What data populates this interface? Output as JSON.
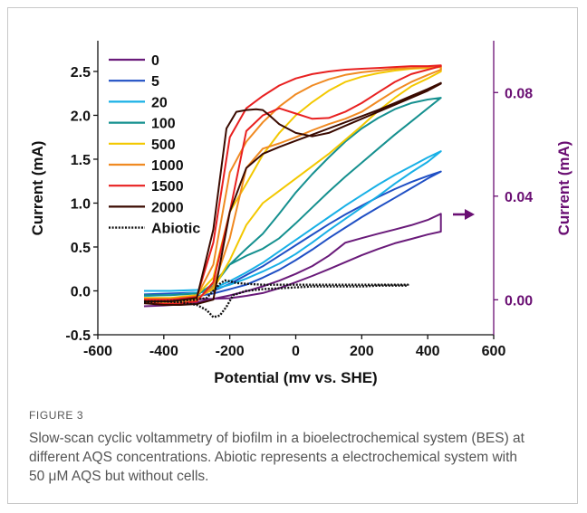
{
  "figure": {
    "label": "FIGURE 3",
    "caption": "Slow-scan cyclic voltammetry of biofilm in a bioelectrochemical system (BES) at different AQS concentrations. Abiotic represents a electrochemical system with 50 μM AQS but without cells."
  },
  "colors": {
    "axis": "#111111",
    "right_axis": "#6a0f73",
    "arrow": "#6a0f73"
  },
  "chart_data": {
    "type": "line",
    "xlabel": "Potential (mv vs. SHE)",
    "ylabel": "Current (mA)",
    "y2label": "Current (mA)",
    "xlim": [
      -600,
      600
    ],
    "ylim": [
      -0.5,
      2.85
    ],
    "y2lim": [
      -0.0135,
      0.1
    ],
    "xticks": [
      -600,
      -400,
      -200,
      0,
      200,
      400,
      600
    ],
    "xtick_labels": [
      "-600",
      "-400",
      "-200",
      "0",
      "200",
      "400",
      "600"
    ],
    "yticks": [
      -0.5,
      0.0,
      0.5,
      1.0,
      1.5,
      2.0,
      2.5
    ],
    "ytick_labels": [
      "-0.5",
      "0.0",
      "0.5",
      "1.0",
      "1.5",
      "2.0",
      "2.5"
    ],
    "y2ticks": [
      0.0,
      0.04,
      0.08
    ],
    "y2tick_labels": [
      "0.00",
      "0.04",
      "0.08"
    ],
    "grid": false,
    "legend_position": "top-left",
    "series": [
      {
        "name": "0",
        "color": "#6a1b7a",
        "dash": "solid",
        "axis": "right",
        "x": [
          -460,
          -380,
          -300,
          -250,
          -200,
          -150,
          -100,
          -50,
          0,
          50,
          100,
          150,
          200,
          250,
          300,
          350,
          400,
          440,
          440,
          400,
          350,
          300,
          250,
          200,
          150,
          100,
          50,
          0,
          -50,
          -100,
          -150,
          -200,
          -250,
          -300,
          -350,
          -400,
          -460
        ],
        "y": [
          0.0003,
          0.0003,
          0.0003,
          0.0004,
          0.0006,
          0.0015,
          0.0026,
          0.0045,
          0.0068,
          0.0092,
          0.0118,
          0.0145,
          0.0172,
          0.0196,
          0.0218,
          0.0235,
          0.0252,
          0.0263,
          0.0332,
          0.0308,
          0.0288,
          0.0271,
          0.0255,
          0.0238,
          0.022,
          0.017,
          0.013,
          0.01,
          0.0074,
          0.0052,
          0.0033,
          0.0017,
          0.0004,
          -0.001,
          -0.0018,
          -0.0022,
          -0.0025
        ]
      },
      {
        "name": "5",
        "color": "#1f4fc4",
        "dash": "solid",
        "axis": "left",
        "x": [
          -460,
          -380,
          -300,
          -250,
          -200,
          -150,
          -100,
          -50,
          0,
          50,
          100,
          150,
          200,
          250,
          300,
          350,
          400,
          440,
          440,
          400,
          350,
          300,
          250,
          200,
          150,
          100,
          50,
          0,
          -50,
          -100,
          -150,
          -200,
          -250,
          -300,
          -350,
          -400,
          -460
        ],
        "y": [
          -0.04,
          -0.03,
          -0.02,
          0.0,
          0.08,
          0.18,
          0.28,
          0.4,
          0.52,
          0.64,
          0.76,
          0.87,
          0.97,
          1.07,
          1.16,
          1.24,
          1.31,
          1.36,
          1.36,
          1.28,
          1.17,
          1.06,
          0.95,
          0.84,
          0.72,
          0.6,
          0.47,
          0.35,
          0.24,
          0.15,
          0.07,
          0.02,
          -0.03,
          -0.06,
          -0.08,
          -0.1,
          -0.12
        ]
      },
      {
        "name": "20",
        "color": "#18b0e6",
        "dash": "solid",
        "axis": "left",
        "x": [
          -460,
          -380,
          -300,
          -250,
          -200,
          -150,
          -100,
          -50,
          0,
          50,
          100,
          150,
          200,
          250,
          300,
          350,
          400,
          440,
          440,
          400,
          350,
          300,
          250,
          200,
          150,
          100,
          50,
          0,
          -50,
          -100,
          -150,
          -200,
          -250,
          -300,
          -350,
          -400,
          -460
        ],
        "y": [
          0.0,
          0.0,
          0.01,
          0.03,
          0.11,
          0.21,
          0.32,
          0.45,
          0.58,
          0.71,
          0.84,
          0.97,
          1.09,
          1.21,
          1.32,
          1.42,
          1.52,
          1.59,
          1.59,
          1.47,
          1.35,
          1.22,
          1.08,
          0.95,
          0.82,
          0.69,
          0.55,
          0.42,
          0.31,
          0.22,
          0.14,
          0.07,
          0.02,
          -0.02,
          -0.04,
          -0.05,
          -0.06
        ]
      },
      {
        "name": "100",
        "color": "#15908f",
        "dash": "solid",
        "axis": "left",
        "x": [
          -460,
          -380,
          -300,
          -250,
          -200,
          -150,
          -100,
          -50,
          0,
          50,
          100,
          150,
          200,
          250,
          300,
          350,
          400,
          440,
          440,
          400,
          350,
          300,
          250,
          200,
          150,
          100,
          50,
          0,
          -50,
          -100,
          -150,
          -200,
          -250,
          -300,
          -350,
          -400,
          -460
        ],
        "y": [
          -0.05,
          -0.05,
          -0.03,
          0.05,
          0.3,
          0.48,
          0.65,
          0.88,
          1.12,
          1.33,
          1.52,
          1.7,
          1.85,
          1.97,
          2.07,
          2.14,
          2.18,
          2.2,
          2.2,
          2.08,
          1.93,
          1.78,
          1.62,
          1.46,
          1.3,
          1.13,
          0.95,
          0.77,
          0.6,
          0.48,
          0.4,
          0.3,
          0.08,
          -0.05,
          -0.08,
          -0.1,
          -0.12
        ]
      },
      {
        "name": "500",
        "color": "#f3c800",
        "dash": "solid",
        "axis": "left",
        "x": [
          -460,
          -380,
          -300,
          -250,
          -200,
          -150,
          -100,
          -50,
          0,
          50,
          100,
          150,
          200,
          250,
          300,
          350,
          400,
          440,
          440,
          400,
          350,
          300,
          250,
          200,
          150,
          100,
          50,
          0,
          -50,
          -100,
          -150,
          -200,
          -250,
          -300,
          -350,
          -400,
          -460
        ],
        "y": [
          -0.08,
          -0.08,
          -0.05,
          0.15,
          0.9,
          1.22,
          1.55,
          1.8,
          2.0,
          2.15,
          2.28,
          2.38,
          2.44,
          2.48,
          2.51,
          2.53,
          2.54,
          2.55,
          2.5,
          2.42,
          2.33,
          2.2,
          2.05,
          1.88,
          1.72,
          1.56,
          1.42,
          1.28,
          1.14,
          1.0,
          0.75,
          0.35,
          0.02,
          -0.08,
          -0.1,
          -0.11,
          -0.12
        ]
      },
      {
        "name": "1000",
        "color": "#f08a22",
        "dash": "solid",
        "axis": "left",
        "x": [
          -460,
          -380,
          -300,
          -250,
          -200,
          -150,
          -100,
          -50,
          0,
          50,
          100,
          150,
          200,
          250,
          300,
          350,
          400,
          440,
          440,
          400,
          350,
          300,
          250,
          200,
          150,
          100,
          50,
          0,
          -50,
          -100,
          -150,
          -200,
          -250,
          -300,
          -350,
          -400,
          -460
        ],
        "y": [
          -0.09,
          -0.09,
          -0.06,
          0.3,
          1.35,
          1.7,
          1.92,
          2.1,
          2.24,
          2.34,
          2.41,
          2.46,
          2.49,
          2.51,
          2.53,
          2.54,
          2.55,
          2.56,
          2.52,
          2.46,
          2.38,
          2.28,
          2.16,
          2.04,
          1.96,
          1.9,
          1.83,
          1.75,
          1.68,
          1.62,
          1.4,
          0.6,
          0.05,
          -0.1,
          -0.12,
          -0.13,
          -0.13
        ]
      },
      {
        "name": "1500",
        "color": "#e82020",
        "dash": "solid",
        "axis": "left",
        "x": [
          -460,
          -380,
          -300,
          -250,
          -200,
          -150,
          -100,
          -50,
          0,
          50,
          100,
          150,
          200,
          250,
          300,
          350,
          400,
          440,
          440,
          400,
          350,
          300,
          250,
          200,
          150,
          100,
          50,
          0,
          -50,
          -100,
          -150,
          -200,
          -250,
          -300,
          -350,
          -400,
          -460
        ],
        "y": [
          -0.1,
          -0.1,
          -0.07,
          0.55,
          1.75,
          2.08,
          2.22,
          2.34,
          2.42,
          2.47,
          2.5,
          2.52,
          2.53,
          2.54,
          2.55,
          2.56,
          2.56,
          2.57,
          2.56,
          2.52,
          2.47,
          2.38,
          2.26,
          2.14,
          2.04,
          1.97,
          1.96,
          2.02,
          2.08,
          2.0,
          1.82,
          0.9,
          0.1,
          -0.12,
          -0.14,
          -0.15,
          -0.14
        ]
      },
      {
        "name": "2000",
        "color": "#3a0a00",
        "dash": "solid",
        "axis": "left",
        "x": [
          -460,
          -380,
          -300,
          -250,
          -210,
          -180,
          -150,
          -120,
          -100,
          -80,
          -50,
          0,
          50,
          100,
          150,
          200,
          250,
          300,
          350,
          400,
          440,
          440,
          400,
          350,
          300,
          250,
          200,
          150,
          100,
          50,
          0,
          -50,
          -100,
          -150,
          -200,
          -250,
          -300,
          -350,
          -400,
          -460
        ],
        "y": [
          -0.12,
          -0.12,
          -0.08,
          0.7,
          1.85,
          2.04,
          2.06,
          2.07,
          2.06,
          2.0,
          1.9,
          1.8,
          1.76,
          1.8,
          1.88,
          1.96,
          2.04,
          2.12,
          2.2,
          2.28,
          2.36,
          2.37,
          2.3,
          2.22,
          2.14,
          2.06,
          1.99,
          1.92,
          1.85,
          1.78,
          1.71,
          1.64,
          1.56,
          1.4,
          0.9,
          -0.1,
          -0.15,
          -0.16,
          -0.16,
          -0.14
        ]
      },
      {
        "name": "Abiotic",
        "color": "#111111",
        "dash": "dotted",
        "axis": "left",
        "x": [
          -460,
          -400,
          -350,
          -300,
          -270,
          -250,
          -230,
          -215,
          -200,
          -180,
          -150,
          -100,
          -50,
          0,
          50,
          100,
          150,
          200,
          250,
          300,
          340,
          340,
          300,
          250,
          200,
          150,
          100,
          50,
          0,
          -50,
          -100,
          -150,
          -190,
          -210,
          -230,
          -250,
          -270,
          -300,
          -350,
          -400,
          -460
        ],
        "y": [
          -0.13,
          -0.12,
          -0.11,
          -0.1,
          -0.08,
          0.0,
          0.08,
          0.12,
          0.11,
          0.09,
          0.08,
          0.07,
          0.07,
          0.07,
          0.07,
          0.07,
          0.07,
          0.07,
          0.07,
          0.07,
          0.07,
          0.06,
          0.06,
          0.06,
          0.05,
          0.05,
          0.05,
          0.05,
          0.04,
          0.03,
          0.02,
          0.0,
          -0.05,
          -0.18,
          -0.28,
          -0.3,
          -0.22,
          -0.16,
          -0.13,
          -0.12,
          -0.12
        ]
      }
    ]
  }
}
